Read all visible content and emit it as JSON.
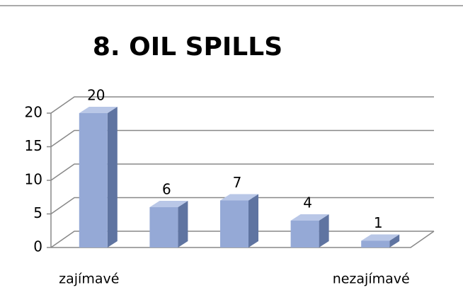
{
  "chart_data": {
    "type": "bar",
    "title": "8. OIL SPILLS",
    "categories": [
      "zajímavé",
      null,
      null,
      null,
      "nezajímavé"
    ],
    "values": [
      20,
      6,
      7,
      4,
      1
    ],
    "color": "#95a9d6",
    "ylim": [
      0,
      20
    ],
    "yticks": [
      0,
      5,
      10,
      15,
      20
    ],
    "grid": true
  }
}
